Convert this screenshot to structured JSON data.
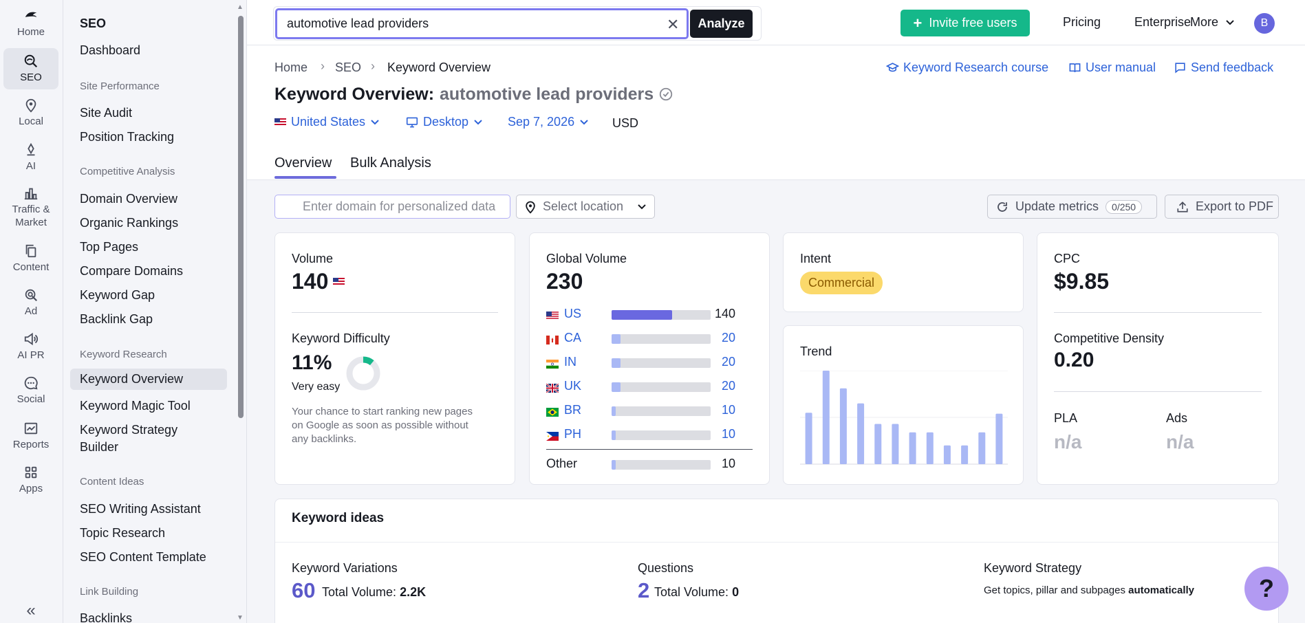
{
  "rail": {
    "items": [
      {
        "label": "Home",
        "icon": "home-icon"
      },
      {
        "label": "SEO",
        "icon": "seo-icon"
      },
      {
        "label": "Local",
        "icon": "location-pin-icon"
      },
      {
        "label": "AI",
        "icon": "ai-icon"
      },
      {
        "label": "Traffic &",
        "label2": "Market",
        "icon": "bar-chart-icon"
      },
      {
        "label": "Content",
        "icon": "content-icon"
      },
      {
        "label": "Ad",
        "icon": "ad-icon"
      },
      {
        "label": "AI PR",
        "icon": "megaphone-icon"
      },
      {
        "label": "Social",
        "icon": "chat-icon"
      },
      {
        "label": "Reports",
        "icon": "reports-icon"
      },
      {
        "label": "Apps",
        "icon": "apps-grid-icon"
      }
    ],
    "collapse": "«"
  },
  "sidebar": {
    "title": "SEO",
    "dashboard": "Dashboard",
    "groups": {
      "site_performance": "Site Performance",
      "competitive": "Competitive Analysis",
      "keyword_research": "Keyword Research",
      "content_ideas": "Content Ideas",
      "link_building": "Link Building"
    },
    "links": {
      "site_audit": "Site Audit",
      "position_tracking": "Position Tracking",
      "domain_overview": "Domain Overview",
      "organic_rankings": "Organic Rankings",
      "top_pages": "Top Pages",
      "compare_domains": "Compare Domains",
      "keyword_gap": "Keyword Gap",
      "backlink_gap": "Backlink Gap",
      "keyword_overview": "Keyword Overview",
      "keyword_magic": "Keyword Magic Tool",
      "keyword_strategy_1": "Keyword Strategy",
      "keyword_strategy_2": "Builder",
      "seo_writing": "SEO Writing Assistant",
      "topic_research": "Topic Research",
      "seo_content_template": "SEO Content Template",
      "backlinks": "Backlinks"
    }
  },
  "topbar": {
    "search_value": "automotive lead providers",
    "clear": "✕",
    "analyze": "Analyze",
    "invite": "Invite free users",
    "pricing": "Pricing",
    "enterprise": "Enterprise",
    "more": "More",
    "avatar": "B"
  },
  "header": {
    "breadcrumb": [
      "Home",
      "SEO",
      "Keyword Overview"
    ],
    "links": {
      "course": "Keyword Research course",
      "manual": "User manual",
      "feedback": "Send feedback"
    },
    "title": "Keyword Overview:",
    "keyword": "automotive lead providers",
    "filters": {
      "country": "United States",
      "device": "Desktop",
      "date": "Sep 7, 2026",
      "currency": "USD"
    },
    "tabs": [
      "Overview",
      "Bulk Analysis"
    ]
  },
  "toolbar": {
    "domain_placeholder": "Enter domain for personalized data",
    "location_placeholder": "Select location",
    "update": "Update metrics",
    "update_count": "0/250",
    "export": "Export to PDF"
  },
  "volume": {
    "label": "Volume",
    "value": "140",
    "kd_label": "Keyword Difficulty",
    "kd_value": "11%",
    "kd_percent": 11,
    "kd_text": "Very easy",
    "kd_desc_1": "Your chance to start ranking new pages",
    "kd_desc_2": "on Google as soon as possible without",
    "kd_desc_3": "any backlinks."
  },
  "global_volume": {
    "label": "Global Volume",
    "value": "230",
    "countries": [
      {
        "code": "US",
        "value": "140",
        "share": 0.61
      },
      {
        "code": "CA",
        "value": "20",
        "share": 0.09
      },
      {
        "code": "IN",
        "value": "20",
        "share": 0.09
      },
      {
        "code": "UK",
        "value": "20",
        "share": 0.09
      },
      {
        "code": "BR",
        "value": "10",
        "share": 0.04
      },
      {
        "code": "PH",
        "value": "10",
        "share": 0.04
      }
    ],
    "other_label": "Other",
    "other_value": "10",
    "other_share": 0.04
  },
  "intent": {
    "label": "Intent",
    "badge": "Commercial"
  },
  "trend": {
    "label": "Trend",
    "values": [
      0.55,
      1.0,
      0.81,
      0.65,
      0.43,
      0.43,
      0.34,
      0.34,
      0.2,
      0.2,
      0.34,
      0.54
    ]
  },
  "cpc": {
    "label": "CPC",
    "value": "$9.85",
    "cd_label": "Competitive Density",
    "cd_value": "0.20",
    "pla_label": "PLA",
    "pla_value": "n/a",
    "ads_label": "Ads",
    "ads_value": "n/a"
  },
  "keyword_ideas": {
    "title": "Keyword ideas",
    "variations_label": "Keyword Variations",
    "variations_value": "60",
    "variations_total_label": "Total Volume:",
    "variations_total": "2.2K",
    "questions_label": "Questions",
    "questions_value": "2",
    "questions_total_label": "Total Volume:",
    "questions_total": "0",
    "strategy_label": "Keyword Strategy",
    "strategy_text": "Get topics, pillar and subpages",
    "strategy_bold": "automatically"
  },
  "help": "?",
  "colors": {
    "accent": "#6d6bdb",
    "green": "#15b88a",
    "link": "#2d62d9",
    "bar_us": "#6a68e0",
    "bar_light": "#a9b8f5"
  }
}
